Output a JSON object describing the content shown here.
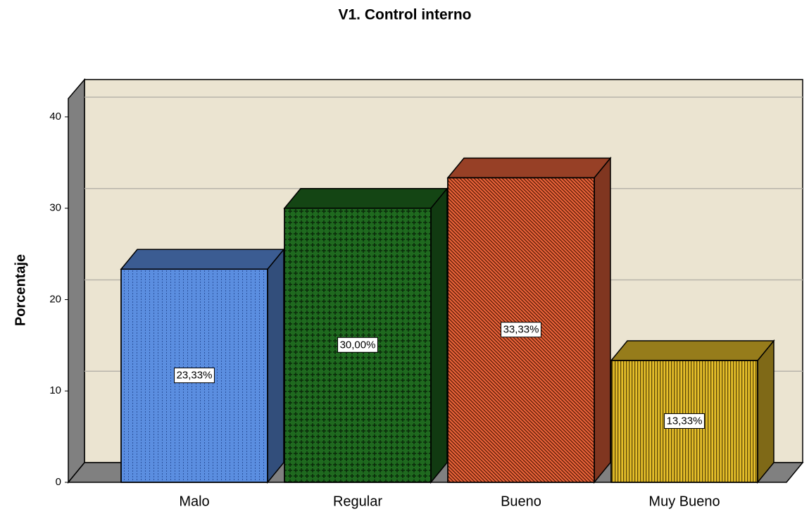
{
  "chart_data": {
    "type": "bar3d",
    "title": "V1. Control interno",
    "y_label": "Porcentaje",
    "categories": [
      "Malo",
      "Regular",
      "Bueno",
      "Muy Bueno"
    ],
    "values": [
      23.33,
      30.0,
      33.33,
      13.33
    ],
    "value_labels": [
      "23,33%",
      "30,00%",
      "33,33%",
      "13,33%"
    ],
    "colors": [
      "#5b8ee0",
      "#1f6a1f",
      "#e8633a",
      "#e6bf2a"
    ],
    "ylim": [
      0,
      42
    ],
    "yticks": [
      0,
      10,
      20,
      30,
      40
    ],
    "grid": true
  }
}
